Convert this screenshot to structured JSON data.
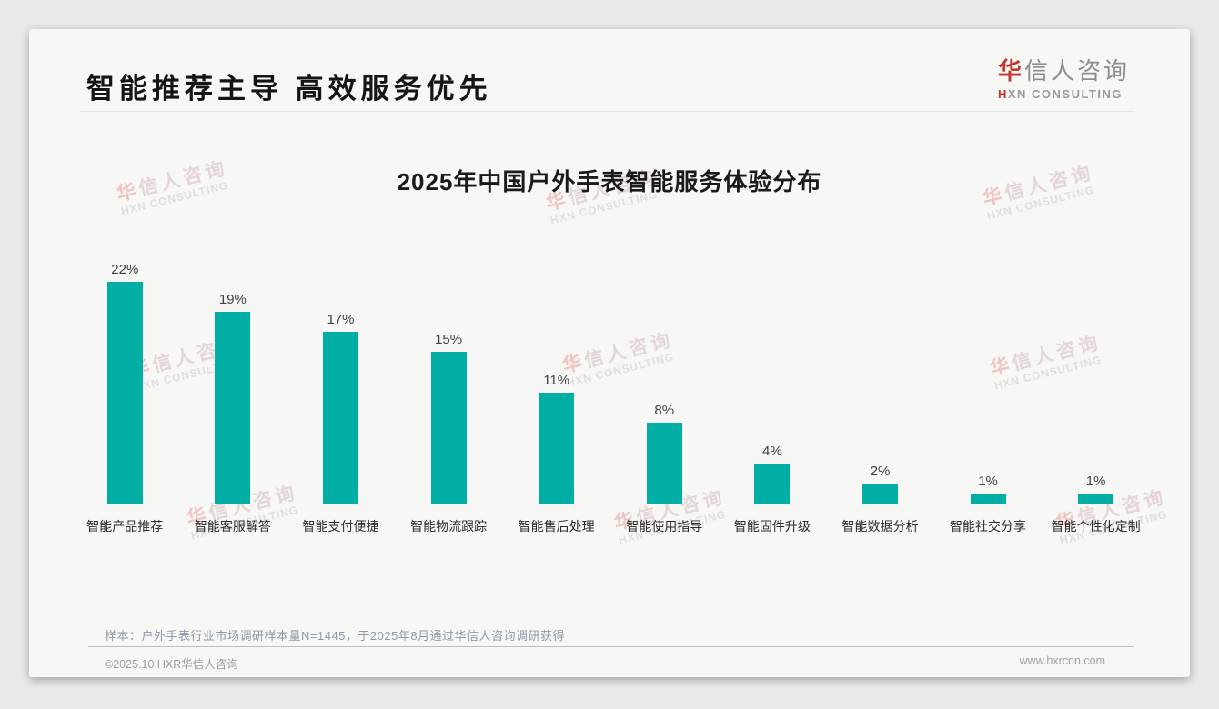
{
  "header": {
    "title": "智能推荐主导 高效服务优先"
  },
  "logo": {
    "cn_accent": "华",
    "cn_rest": "信人咨询",
    "en_accent": "H",
    "en_rest": "XN CONSULTING"
  },
  "watermark": {
    "cn_accent": "华",
    "cn_rest": "信人咨询",
    "en": "HXN CONSULTING"
  },
  "chart_data": {
    "type": "bar",
    "title": "2025年中国户外手表智能服务体验分布",
    "categories": [
      "智能产品推荐",
      "智能客服解答",
      "智能支付便捷",
      "智能物流跟踪",
      "智能售后处理",
      "智能使用指导",
      "智能固件升级",
      "智能数据分析",
      "智能社交分享",
      "智能个性化定制"
    ],
    "values": [
      22,
      19,
      17,
      15,
      11,
      8,
      4,
      2,
      1,
      1
    ],
    "value_labels": [
      "22%",
      "19%",
      "17%",
      "15%",
      "11%",
      "8%",
      "4%",
      "2%",
      "1%",
      "1%"
    ],
    "unit": "%",
    "ylim": [
      0,
      24
    ],
    "grid": false,
    "legend": "none",
    "bar_color": "#00AEA4"
  },
  "footer": {
    "note": "样本：户外手表行业市场调研样本量N=1445，于2025年8月通过华信人咨询调研获得",
    "copyright": "©2025.10 HXR华信人咨询",
    "website": "www.hxrcon.com"
  },
  "colors": {
    "bar": "#00AEA4",
    "logo_red": "#C2362B",
    "note_text": "#8C9AA9",
    "footer_divider": "#B3C0CE",
    "card_bg": "#F7F7F6",
    "page_bg": "#E9E9E9"
  }
}
